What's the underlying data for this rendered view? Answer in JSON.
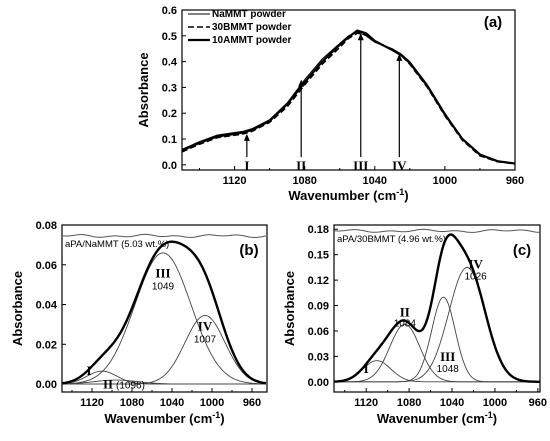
{
  "chart_data": [
    {
      "type": "line",
      "panel_label": "(a)",
      "xlabel": "Wavenumber (cm",
      "xlabel_sup": "-1",
      "xlabel_end": ")",
      "ylabel": "Absorbance",
      "xlim": [
        1150,
        960
      ],
      "ylim": [
        -0.02,
        0.6
      ],
      "xticks": [
        1120,
        1080,
        1040,
        1000,
        960
      ],
      "xtick_labels": [
        "1120",
        "1080",
        "1040",
        "1000",
        "960"
      ],
      "yticks": [
        0.0,
        0.1,
        0.2,
        0.3,
        0.4,
        0.5,
        0.6
      ],
      "ytick_labels": [
        "0.0",
        "0.1",
        "0.2",
        "0.3",
        "0.4",
        "0.5",
        "0.6"
      ],
      "legend_position": "top-left",
      "series": [
        {
          "name": "NaMMT powder",
          "style": "solid-thin",
          "x": [
            1150,
            1140,
            1130,
            1120,
            1115,
            1110,
            1100,
            1090,
            1080,
            1070,
            1060,
            1055,
            1050,
            1045,
            1040,
            1030,
            1025,
            1020,
            1010,
            1000,
            990,
            980,
            970,
            960
          ],
          "y": [
            0.06,
            0.09,
            0.115,
            0.125,
            0.13,
            0.14,
            0.175,
            0.24,
            0.33,
            0.41,
            0.47,
            0.5,
            0.515,
            0.5,
            0.475,
            0.45,
            0.43,
            0.4,
            0.31,
            0.2,
            0.1,
            0.04,
            0.015,
            0.005
          ]
        },
        {
          "name": "30BMMT powder",
          "style": "dashed",
          "x": [
            1150,
            1140,
            1130,
            1120,
            1115,
            1110,
            1100,
            1090,
            1080,
            1070,
            1060,
            1055,
            1050,
            1045,
            1040,
            1030,
            1025,
            1020,
            1010,
            1000,
            990,
            980,
            970,
            960
          ],
          "y": [
            0.05,
            0.08,
            0.105,
            0.115,
            0.12,
            0.13,
            0.165,
            0.225,
            0.31,
            0.39,
            0.455,
            0.49,
            0.51,
            0.505,
            0.48,
            0.445,
            0.425,
            0.39,
            0.3,
            0.19,
            0.095,
            0.035,
            0.012,
            0.004
          ]
        },
        {
          "name": "10AMMT powder",
          "style": "solid-thick",
          "x": [
            1150,
            1140,
            1130,
            1120,
            1115,
            1110,
            1100,
            1090,
            1080,
            1070,
            1060,
            1055,
            1050,
            1045,
            1040,
            1030,
            1025,
            1020,
            1010,
            1000,
            990,
            980,
            970,
            960
          ],
          "y": [
            0.055,
            0.085,
            0.11,
            0.12,
            0.125,
            0.135,
            0.17,
            0.235,
            0.32,
            0.4,
            0.465,
            0.495,
            0.52,
            0.51,
            0.48,
            0.445,
            0.425,
            0.395,
            0.305,
            0.195,
            0.1,
            0.04,
            0.014,
            0.005
          ]
        }
      ],
      "annotations": [
        {
          "label": "I",
          "x": 1113,
          "arrow_from": 0.03,
          "arrow_to": 0.12
        },
        {
          "label": "II",
          "x": 1082,
          "arrow_from": 0.03,
          "arrow_to": 0.33
        },
        {
          "label": "III",
          "x": 1048,
          "arrow_from": 0.03,
          "arrow_to": 0.51
        },
        {
          "label": "IV",
          "x": 1026,
          "arrow_from": 0.03,
          "arrow_to": 0.43
        }
      ]
    },
    {
      "type": "line",
      "panel_label": "(b)",
      "xlabel": "Wavenumber (cm",
      "xlabel_sup": "-1",
      "xlabel_end": ")",
      "ylabel": "Absorbance",
      "xlim": [
        1150,
        945
      ],
      "ylim": [
        -0.004,
        0.08
      ],
      "xticks": [
        1120,
        1080,
        1040,
        1000,
        960
      ],
      "xtick_labels": [
        "1120",
        "1080",
        "1040",
        "1000",
        "960"
      ],
      "yticks": [
        0.0,
        0.02,
        0.04,
        0.06,
        0.08
      ],
      "ytick_labels": [
        "0.00",
        "0.02",
        "0.04",
        "0.06",
        "0.08"
      ],
      "note": "aPA/NaMMT (5.03 wt.%)",
      "reference_level": 0.0745,
      "peaks": [
        {
          "label": "I",
          "value": "",
          "center": 1110,
          "height": 0.0065,
          "width": 15
        },
        {
          "label": "II",
          "value": "(1096)",
          "center": 1096,
          "height": 0.002,
          "width": 22
        },
        {
          "label": "III",
          "value": "1049",
          "center": 1049,
          "height": 0.066,
          "width": 28
        },
        {
          "label": "IV",
          "value": "1007",
          "center": 1007,
          "height": 0.0345,
          "width": 20
        }
      ]
    },
    {
      "type": "line",
      "panel_label": "(c)",
      "xlabel": "Wavenumber (cm",
      "xlabel_sup": "-1",
      "xlabel_end": ")",
      "ylabel": "Absorbance",
      "xlim": [
        1150,
        958
      ],
      "ylim": [
        -0.012,
        0.185
      ],
      "xticks": [
        1120,
        1080,
        1040,
        1000,
        960
      ],
      "xtick_labels": [
        "1120",
        "1080",
        "1040",
        "1000",
        "960"
      ],
      "yticks": [
        0.0,
        0.03,
        0.06,
        0.09,
        0.12,
        0.15,
        0.18
      ],
      "ytick_labels": [
        "0.00",
        "0.03",
        "0.06",
        "0.09",
        "0.12",
        "0.15",
        "0.18"
      ],
      "note": "aPA/30BMMT (4.96 wt.%)",
      "reference_level": 0.178,
      "peaks": [
        {
          "label": "I",
          "value": "",
          "center": 1110,
          "height": 0.025,
          "width": 13
        },
        {
          "label": "II",
          "value": "1084",
          "center": 1084,
          "height": 0.068,
          "width": 14
        },
        {
          "label": "III",
          "value": "1048",
          "center": 1048,
          "height": 0.1,
          "width": 11
        },
        {
          "label": "IV",
          "value": "1026",
          "center": 1026,
          "height": 0.135,
          "width": 17
        }
      ]
    }
  ]
}
